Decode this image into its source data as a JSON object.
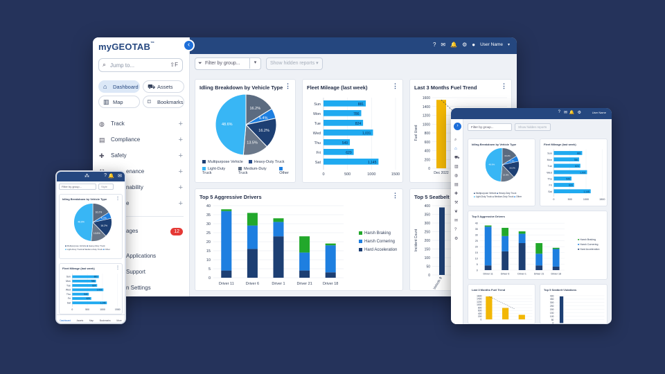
{
  "app": {
    "logo_prefix": "my",
    "logo_main": "GEOTAB",
    "logo_tm": "™",
    "user_name": "User Name",
    "jump_placeholder": "Jump to...",
    "jump_key": "⇧F"
  },
  "quick_links": [
    {
      "label": "Dashboard",
      "icon": "home-icon",
      "active": true
    },
    {
      "label": "Assets",
      "icon": "truck-icon",
      "active": false
    },
    {
      "label": "Map",
      "icon": "map-icon",
      "active": false
    },
    {
      "label": "Bookmarks",
      "icon": "bookmark-icon",
      "active": false
    }
  ],
  "nav": [
    {
      "label": "Track",
      "icon": "globe-icon"
    },
    {
      "label": "Compliance",
      "icon": "clipboard-icon"
    },
    {
      "label": "Safety",
      "icon": "bandage-icon"
    },
    {
      "label": "enance",
      "icon": "wrench-icon"
    },
    {
      "label": "nability",
      "icon": "leaf-icon"
    },
    {
      "label": "e",
      "icon": "gear-icon"
    }
  ],
  "nav_lower": [
    {
      "label": "ages",
      "badge": "12"
    },
    {
      "label": "Applications"
    },
    {
      "label": "Support"
    },
    {
      "label": "n Settings"
    }
  ],
  "toolbar": {
    "filter_label": "Filter by group...",
    "hidden_reports": "Show hidden reports"
  },
  "idling": {
    "title": "Idling Breakdown by Vehicle Type",
    "legend": [
      "Multipurpose Vehicle",
      "Heavy-Duty Truck",
      "Light-Duty Truck",
      "Medium-Duty Truck",
      "Other"
    ],
    "colors": [
      "#1d3f73",
      "#264a87",
      "#38b6f5",
      "#5b6b80",
      "#1e7fe0"
    ],
    "slices": [
      {
        "label": "16.2%",
        "value": 16.2,
        "color": "#5b6b80"
      },
      {
        "label": "5.4%",
        "value": 5.4,
        "color": "#1e7fe0"
      },
      {
        "label": "16.2%",
        "value": 16.2,
        "color": "#1d3f73"
      },
      {
        "label": "13.5%",
        "value": 13.5,
        "color": "#6a7789"
      },
      {
        "label": "48.6%",
        "value": 48.6,
        "color": "#38b6f5"
      }
    ]
  },
  "mileage": {
    "title": "Fleet Mileage (last week)",
    "days": [
      "Sun",
      "Mon",
      "Tue",
      "Wed",
      "Thu",
      "Fri",
      "Sat"
    ],
    "values": [
      "881",
      "786",
      "824",
      "1,031",
      "549",
      "629",
      "1,145"
    ],
    "ticks": [
      "0",
      "500",
      "1000",
      "1500"
    ]
  },
  "fuel": {
    "title": "Last 3 Months Fuel Trend",
    "ylabel": "Fuel Used",
    "ticks": [
      "1600",
      "1400",
      "1200",
      "1000",
      "800",
      "600",
      "400",
      "200",
      "0"
    ],
    "xlabel": "Dec 2022"
  },
  "aggressive": {
    "title": "Top 5 Aggressive Drivers",
    "drivers": [
      "Driver 11",
      "Driver 6",
      "Driver 1",
      "Driver 21",
      "Driver 18"
    ],
    "ticks": [
      "40",
      "35",
      "30",
      "25",
      "20",
      "15",
      "10",
      "5",
      "0"
    ],
    "legend": [
      "Harsh Braking",
      "Harsh Cornering",
      "Hard Acceleration"
    ],
    "colors": [
      "#22a82b",
      "#1e7fe0",
      "#1d3f73"
    ]
  },
  "seatbelt": {
    "title": "Top 5 Seatbelt Viola",
    "ylabel": "Incident Count",
    "ticks": [
      "400",
      "350",
      "300",
      "250",
      "200",
      "150",
      "100",
      "50",
      "0"
    ],
    "xlabel": "Vehicle 8"
  },
  "phone": {
    "filter": "Filter by group...",
    "style": "Style",
    "idling_title": "Idling Breakdown by Vehicle Type",
    "mileage_title": "Fleet Mileage (last week)",
    "tabs": [
      "Dashboard",
      "Assets",
      "Map",
      "Bookmarks",
      "More"
    ]
  },
  "tablet": {
    "filter": "Filter by group...",
    "hidden": "Show hidden reports",
    "user": "User Name",
    "idling_title": "Idling Breakdown by Vehicle Type",
    "mileage_title": "Fleet Mileage (last week)",
    "aggressive_title": "Top 5 Aggressive Drivers",
    "fuel_title": "Last 3 Months Fuel Trend",
    "seatbelt_title": "Top 5 Seatbelt Violations"
  },
  "chart_data": [
    {
      "type": "pie",
      "title": "Idling Breakdown by Vehicle Type",
      "labels": [
        "Medium-Duty Truck",
        "Other",
        "Multipurpose Vehicle",
        "Heavy-Duty Truck",
        "Light-Duty Truck"
      ],
      "values": [
        16.2,
        5.4,
        16.2,
        13.5,
        48.6
      ]
    },
    {
      "type": "bar",
      "title": "Fleet Mileage (last week)",
      "categories": [
        "Sun",
        "Mon",
        "Tue",
        "Wed",
        "Thu",
        "Fri",
        "Sat"
      ],
      "values": [
        881,
        786,
        824,
        1031,
        549,
        629,
        1145
      ],
      "xlim": [
        0,
        1500
      ]
    },
    {
      "type": "bar",
      "title": "Top 5 Aggressive Drivers",
      "categories": [
        "Driver 11",
        "Driver 6",
        "Driver 1",
        "Driver 21",
        "Driver 18"
      ],
      "series": [
        {
          "name": "Hard Acceleration",
          "values": [
            4,
            16,
            23,
            4,
            3
          ]
        },
        {
          "name": "Harsh Cornering",
          "values": [
            33,
            13,
            8,
            10,
            15
          ]
        },
        {
          "name": "Harsh Braking",
          "values": [
            1,
            7,
            2,
            9,
            1
          ]
        }
      ],
      "ylim": [
        0,
        40
      ]
    },
    {
      "type": "bar",
      "title": "Last 3 Months Fuel Trend",
      "ylabel": "Fuel Used",
      "categories": [
        "Dec 2022"
      ],
      "values": [
        1550
      ],
      "ylim": [
        0,
        1600
      ]
    },
    {
      "type": "bar",
      "title": "Top 5 Seatbelt Violations",
      "ylabel": "Incident Count",
      "categories": [
        "Vehicle 8"
      ],
      "values": [
        390
      ],
      "ylim": [
        0,
        400
      ]
    }
  ]
}
